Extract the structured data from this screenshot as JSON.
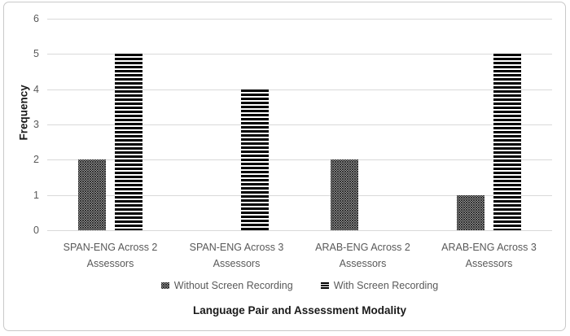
{
  "frame": {
    "border_color": "#c9c9c9",
    "background_color": "#ffffff"
  },
  "chart_data": {
    "type": "bar",
    "title": "",
    "xlabel": "Language Pair and Assessment Modality",
    "ylabel": "Frequency",
    "ylim": [
      0,
      6
    ],
    "yticks": [
      0,
      1,
      2,
      3,
      4,
      5,
      6
    ],
    "grid": true,
    "legend_position": "bottom",
    "categories": [
      "SPAN-ENG Across 2 Assessors",
      "SPAN-ENG Across 3 Assessors",
      "ARAB-ENG Across 2 Assessors",
      "ARAB-ENG Across 3 Assessors"
    ],
    "series": [
      {
        "name": "Without Screen Recording",
        "pattern": "dotted",
        "values": [
          2,
          0,
          2,
          1
        ]
      },
      {
        "name": "With Screen Recording",
        "pattern": "horizontal-stripes",
        "values": [
          5,
          4,
          0,
          5
        ]
      }
    ],
    "colors": {
      "bar_ink": "#000000",
      "gridline": "#d9d9d9",
      "axis_text": "#595959",
      "title_text": "#1a1a1a"
    }
  }
}
